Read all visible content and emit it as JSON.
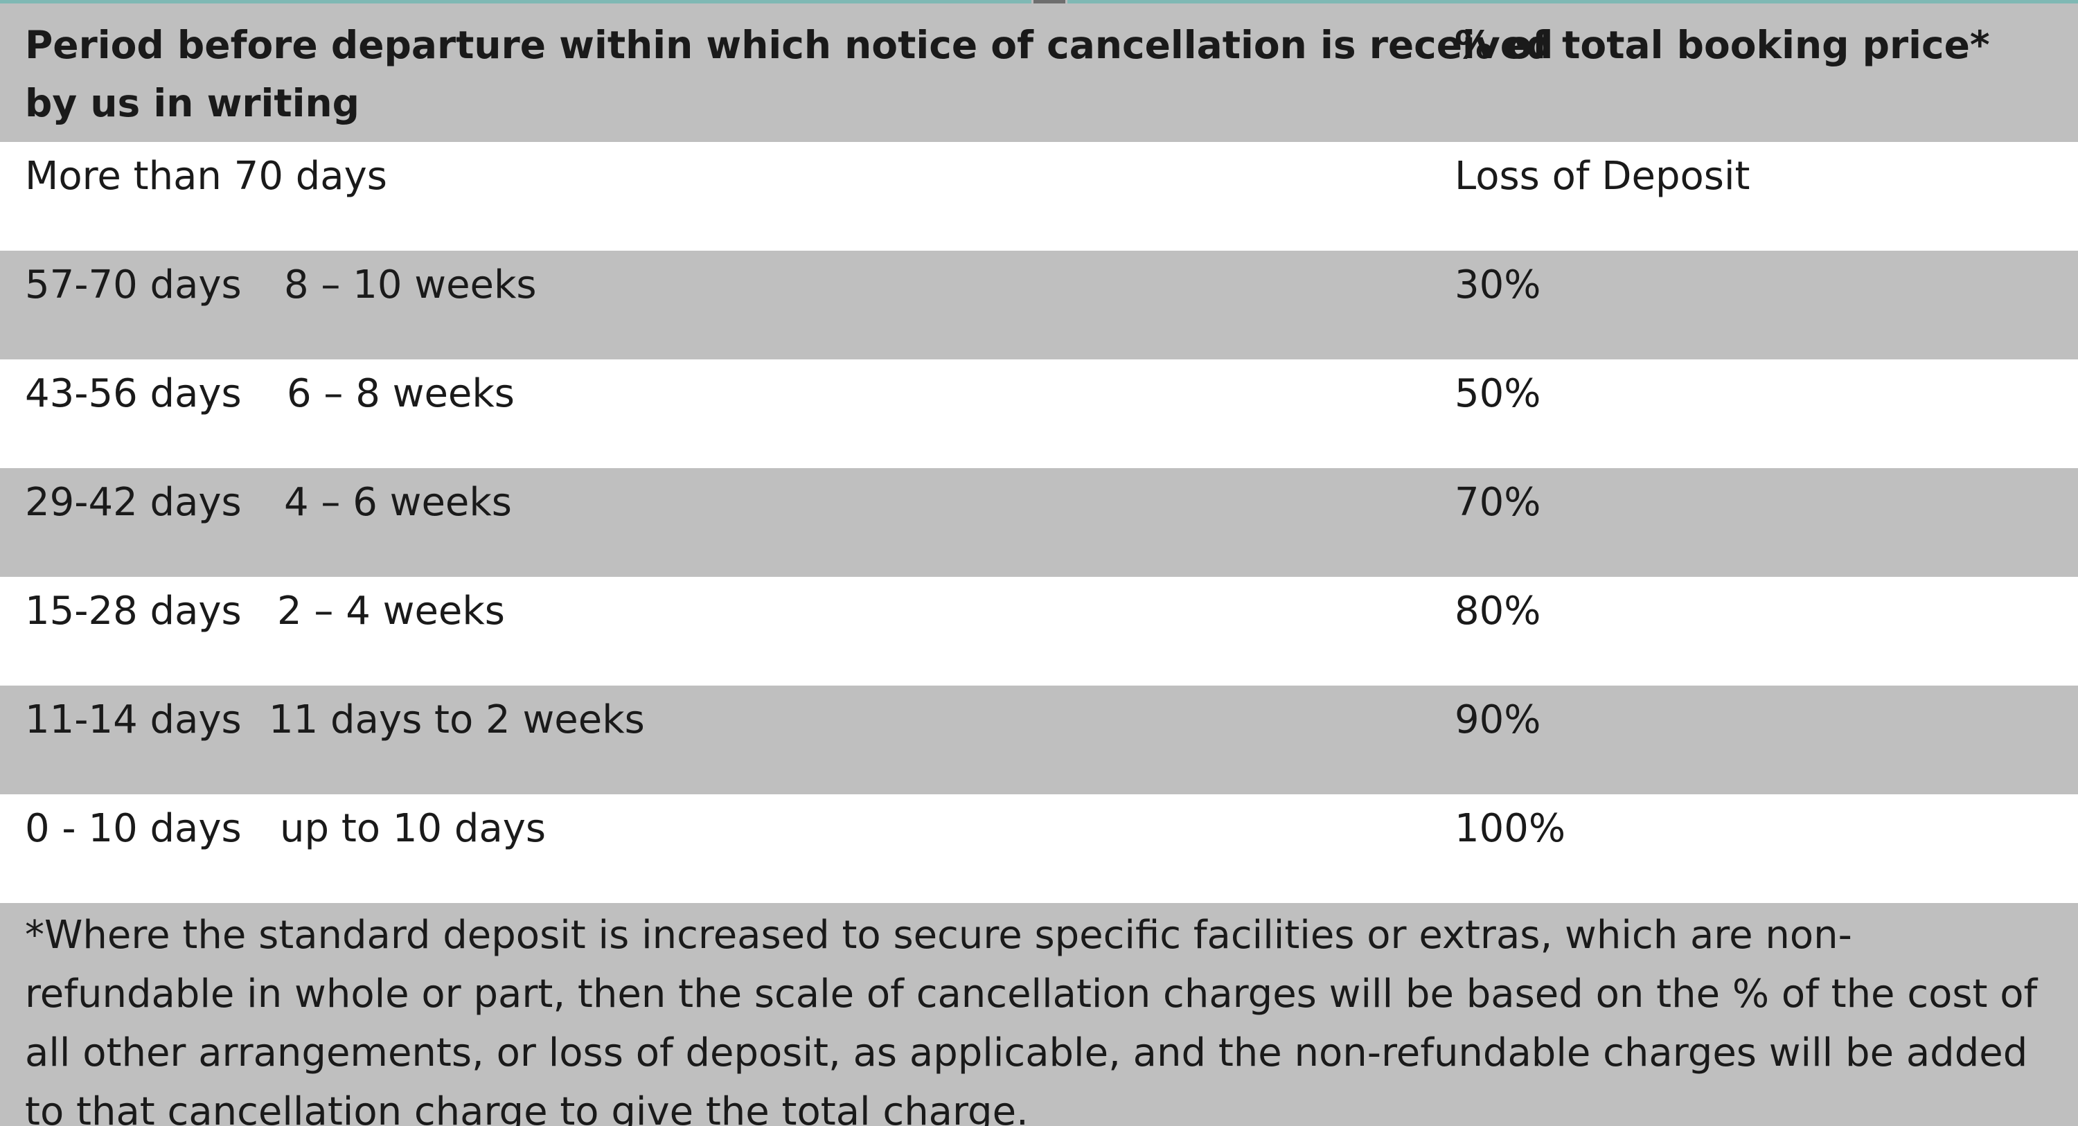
{
  "table": {
    "header": {
      "period_line1": "Period before departure within which notice of cancellation is received",
      "period_line2": "by us in writing",
      "percent": "% of total booking price*"
    },
    "rows": [
      {
        "days": "More than 70 days",
        "weeks": "",
        "charge": "Loss of Deposit"
      },
      {
        "days": "57-70 days",
        "weeks": "8 – 10 weeks",
        "charge": "30%"
      },
      {
        "days": "43-56 days",
        "weeks": "6 – 8 weeks",
        "charge": "50%"
      },
      {
        "days": "29-42 days",
        "weeks": "4 – 6 weeks",
        "charge": "70%"
      },
      {
        "days": "15-28 days",
        "weeks": "2 – 4 weeks",
        "charge": "80%"
      },
      {
        "days": "11-14 days",
        "weeks": "11 days to 2 weeks",
        "charge": "90%"
      },
      {
        "days": "0 - 10 days",
        "weeks": "up to 10 days",
        "charge": "100%"
      }
    ],
    "footnote": "*Where the standard deposit is increased to secure specific facilities or extras, which are non-refundable in whole or part, then the scale of cancellation charges will be based on the % of the cost of all other arrangements, or loss of deposit, as applicable, and the non-refundable charges will be added to that cancellation charge to give the total charge."
  }
}
